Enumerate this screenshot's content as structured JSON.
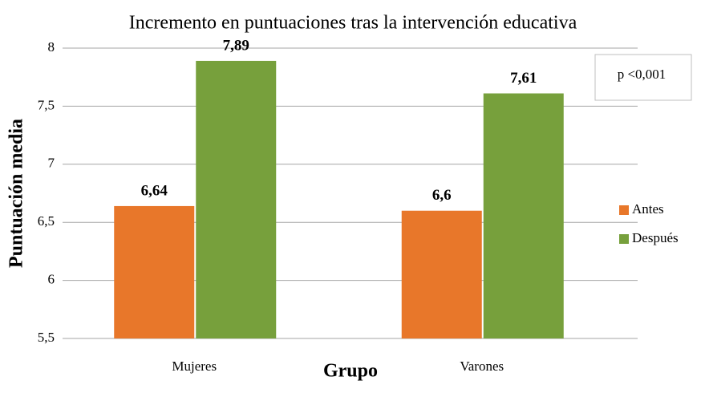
{
  "chart_data": {
    "type": "bar",
    "title": "Incremento en puntuaciones tras la intervención educativa",
    "x_label": "Grupo",
    "y_label": "Puntuación media",
    "annotation": "p <0,001",
    "categories": [
      "Mujeres",
      "Varones"
    ],
    "series": [
      {
        "name": "Antes",
        "color": "#e8772a",
        "values": [
          6.64,
          6.6
        ],
        "value_labels": [
          "6,64",
          "6,6"
        ]
      },
      {
        "name": "Después",
        "color": "#77a03c",
        "values": [
          7.89,
          7.61
        ],
        "value_labels": [
          "7,89",
          "7,61"
        ]
      }
    ],
    "ylim": [
      5.5,
      8
    ],
    "yticks": [
      {
        "value": 5.5,
        "label": "5,5"
      },
      6,
      {
        "value": 6.5,
        "label": "6,5"
      },
      7,
      {
        "value": 7.5,
        "label": "7,5"
      },
      8
    ],
    "grid": true,
    "legend": "right"
  }
}
